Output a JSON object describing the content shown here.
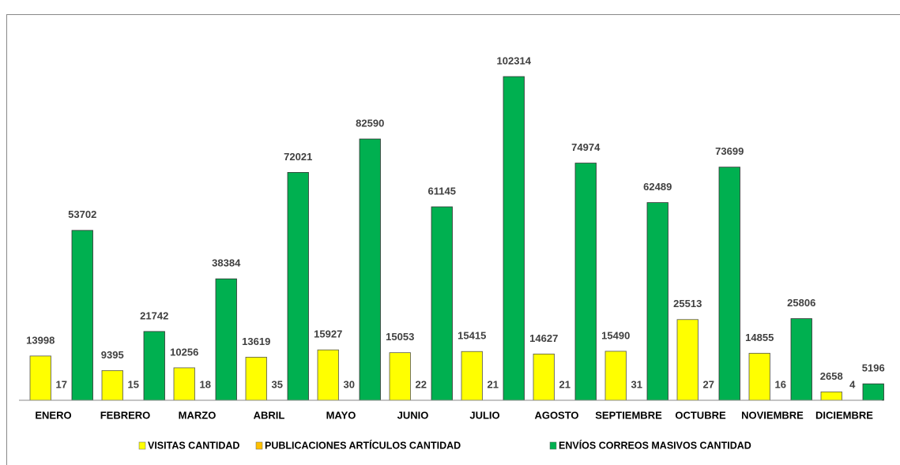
{
  "chart_data": {
    "type": "bar",
    "categories": [
      "ENERO",
      "FEBRERO",
      "MARZO",
      "ABRIL",
      "MAYO",
      "JUNIO",
      "JULIO",
      "AGOSTO",
      "SEPTIEMBRE",
      "OCTUBRE",
      "NOVIEMBRE",
      "DICIEMBRE"
    ],
    "series": [
      {
        "name": "VISITAS CANTIDAD",
        "color": "#ffff00",
        "values": [
          13998,
          9395,
          10256,
          13619,
          15927,
          15053,
          15415,
          14627,
          15490,
          25513,
          14855,
          2658
        ]
      },
      {
        "name": "PUBLICACIONES ARTÍCULOS CANTIDAD",
        "color": "#ffc000",
        "values": [
          17,
          15,
          18,
          35,
          30,
          22,
          21,
          21,
          31,
          27,
          16,
          4
        ]
      },
      {
        "name": "ENVÍOS CORREOS MASIVOS CANTIDAD",
        "color": "#00b050",
        "values": [
          53702,
          21742,
          38384,
          72021,
          82590,
          61145,
          102314,
          74974,
          62489,
          73699,
          25806,
          5196
        ]
      }
    ],
    "legend": "bottom"
  }
}
